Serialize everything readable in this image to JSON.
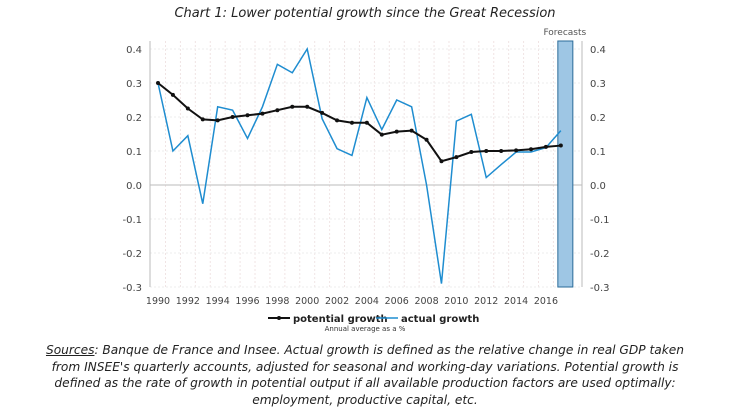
{
  "chart_data": {
    "type": "line",
    "title": "Chart 1: Lower potential growth since the Great Recession",
    "x": [
      1990,
      1991,
      1992,
      1993,
      1994,
      1995,
      1996,
      1997,
      1998,
      1999,
      2000,
      2001,
      2002,
      2003,
      2004,
      2005,
      2006,
      2007,
      2008,
      2009,
      2010,
      2011,
      2012,
      2013,
      2014,
      2015,
      2016,
      2017
    ],
    "x_tick_labels": [
      "1990",
      "1992",
      "1994",
      "1996",
      "1998",
      "2000",
      "2002",
      "2004",
      "2006",
      "2008",
      "2010",
      "2012",
      "2014",
      "2016"
    ],
    "y_tick_labels": [
      "-0.3",
      "-0.2",
      "-0.1",
      "0.0",
      "0.1",
      "0.2",
      "0.3",
      "0.4"
    ],
    "ylim": [
      -0.3,
      0.4
    ],
    "grid": true,
    "series": [
      {
        "name": "potential growth",
        "color": "#111111",
        "marker": "dot",
        "values": [
          0.3,
          0.265,
          0.225,
          0.193,
          0.19,
          0.2,
          0.205,
          0.21,
          0.22,
          0.23,
          0.23,
          0.212,
          0.19,
          0.183,
          0.183,
          0.148,
          0.157,
          0.16,
          0.133,
          0.07,
          0.082,
          0.097,
          0.1,
          0.1,
          0.102,
          0.105,
          0.112,
          0.116
        ]
      },
      {
        "name": "actual growth",
        "color": "#1f8dd0",
        "values": [
          0.3,
          0.1,
          0.145,
          -0.055,
          0.23,
          0.22,
          0.137,
          0.23,
          0.355,
          0.33,
          0.4,
          0.195,
          0.107,
          0.087,
          0.257,
          0.163,
          0.25,
          0.23,
          0.0,
          -0.29,
          0.188,
          0.208,
          0.022,
          0.06,
          0.097,
          0.097,
          0.11,
          0.16
        ]
      }
    ],
    "forecast_band": {
      "label": "Forecasts",
      "year": 2017,
      "color": "#9ec6e4"
    },
    "legend_placement": "bottom",
    "legend_note": "Annual average as a  %"
  },
  "sources": {
    "label": "Sources",
    "text": ": Banque de France and Insee. Actual growth is defined as the relative change in real GDP taken from INSEE's quarterly accounts, adjusted for seasonal and working-day variations. Potential growth is defined as the rate of growth in potential output if all available production factors are used optimally:  employment, productive capital, etc."
  }
}
